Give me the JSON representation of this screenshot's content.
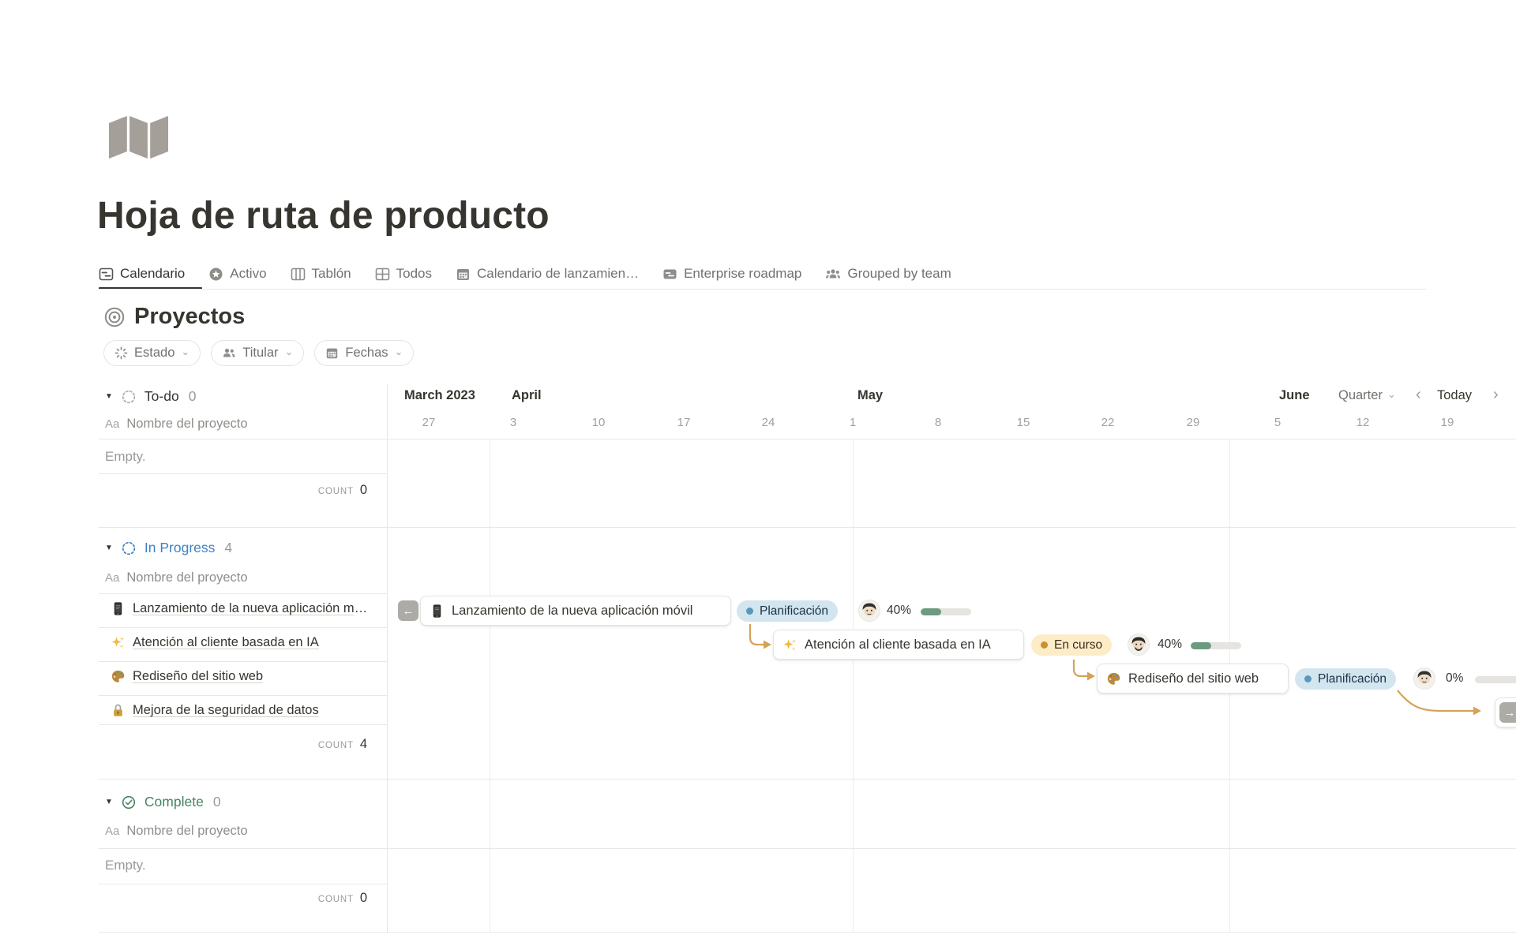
{
  "page": {
    "title": "Hoja de ruta de producto",
    "icon": "map"
  },
  "tabs": [
    {
      "label": "Calendario",
      "icon": "timeline-view",
      "active": true
    },
    {
      "label": "Activo",
      "icon": "star-circle",
      "active": false
    },
    {
      "label": "Tablón",
      "icon": "board-view",
      "active": false
    },
    {
      "label": "Todos",
      "icon": "table-view",
      "active": false
    },
    {
      "label": "Calendario de lanzamien…",
      "icon": "calendar-view",
      "active": false
    },
    {
      "label": "Enterprise roadmap",
      "icon": "roadmap-card",
      "active": false
    },
    {
      "label": "Grouped by team",
      "icon": "people-group",
      "active": false
    }
  ],
  "section": {
    "title": "Proyectos",
    "icon": "target"
  },
  "filters": [
    {
      "label": "Estado",
      "icon": "status-spinner"
    },
    {
      "label": "Titular",
      "icon": "people"
    },
    {
      "label": "Fechas",
      "icon": "calendar"
    }
  ],
  "timeline": {
    "months": [
      "March 2023",
      "April",
      "May",
      "June"
    ],
    "dates": [
      "27",
      "3",
      "10",
      "17",
      "24",
      "1",
      "8",
      "15",
      "22",
      "29",
      "5",
      "12",
      "19"
    ],
    "zoom_control": "Quarter",
    "today_label": "Today",
    "prev_icon": "‹",
    "next_icon": "›",
    "left_scroll_icon": "←",
    "right_scroll_icon": "→"
  },
  "labels": {
    "toggle": "▼",
    "property_icon": "Aa",
    "property": "Nombre del proyecto",
    "empty": "Empty.",
    "count": "COUNT"
  },
  "groups": [
    {
      "name": "To-do",
      "count": "0",
      "status_icon": "dashed-circle-gray"
    },
    {
      "name": "In Progress",
      "count": "4",
      "status_icon": "dashed-circle-blue",
      "items": [
        {
          "title": "Lanzamiento de la nueva aplicación móvil",
          "icon": "mobile-phone"
        },
        {
          "title": "Atención al cliente basada en IA",
          "icon": "sparkles"
        },
        {
          "title": "Rediseño del sitio web",
          "icon": "palette"
        },
        {
          "title": "Mejora de la seguridad de datos",
          "icon": "lock"
        }
      ]
    },
    {
      "name": "Complete",
      "count": "0",
      "status_icon": "check-circle-green"
    }
  ],
  "cards": [
    {
      "title": "Lanzamiento de la nueva aplicación móvil",
      "icon": "mobile-phone",
      "status": "Planificación",
      "progress": "40%",
      "progress_pct": 40
    },
    {
      "title": "Atención al cliente basada en IA",
      "icon": "sparkles",
      "status": "En curso",
      "progress": "40%",
      "progress_pct": 40
    },
    {
      "title": "Rediseño del sitio web",
      "icon": "palette",
      "status": "Planificación",
      "progress": "0%",
      "progress_pct": 0
    }
  ],
  "colors": {
    "text_dark": "#37352f",
    "text_gray": "#73716d",
    "group_in_progress": "#3b82c6",
    "group_complete": "#448361",
    "pill_blue_bg": "#d3e5ef",
    "pill_blue_dot": "#5b97bd",
    "pill_yellow_bg": "#fdecc8",
    "pill_yellow_dot": "#cb912f",
    "progress_fill": "#6d9b80",
    "connector": "#d4a258",
    "gridline": "#eeedeb",
    "page_icon_gray": "#a49f98"
  }
}
